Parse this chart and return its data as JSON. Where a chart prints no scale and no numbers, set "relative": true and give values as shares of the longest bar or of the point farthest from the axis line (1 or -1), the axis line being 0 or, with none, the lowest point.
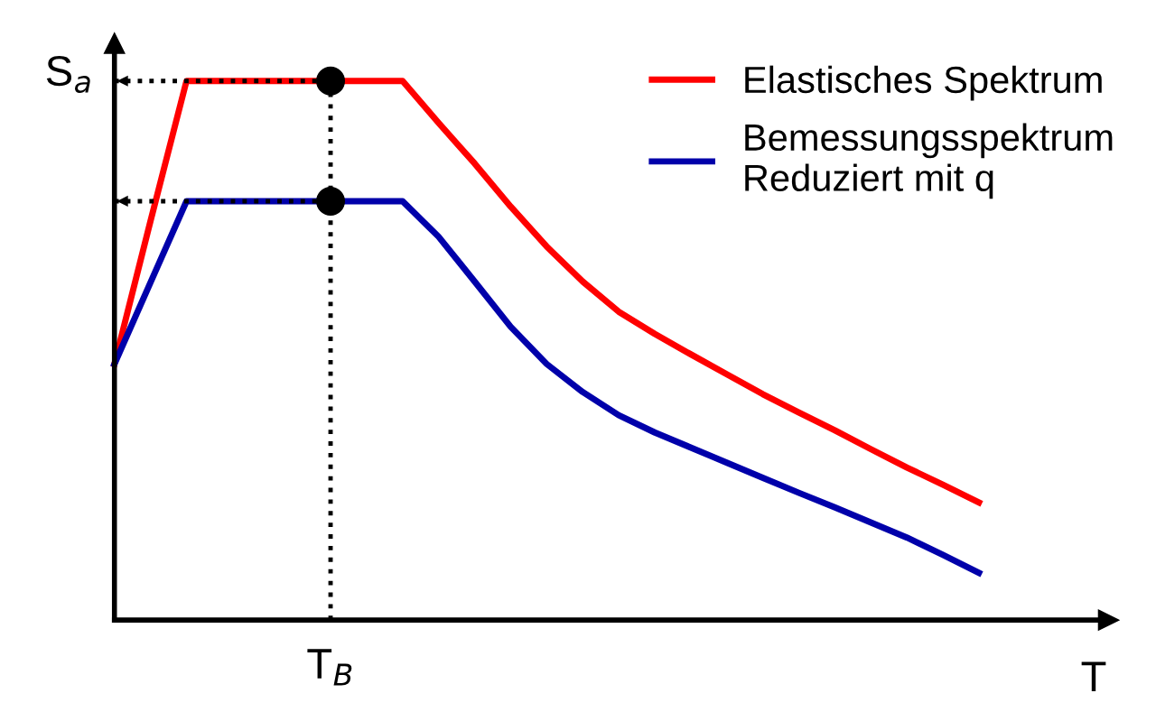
{
  "chart_data": {
    "type": "line",
    "relative": true,
    "xlabel": "T",
    "ylabel": "S$_{a}$",
    "grid": false,
    "legend": "top right",
    "line_style": "solid",
    "marker": "none",
    "categories": [
      null,
      null,
      null,
      null,
      null,
      null,
      null,
      null,
      null,
      null,
      null,
      null,
      null,
      null,
      null,
      null,
      null,
      null,
      null,
      null,
      null,
      null,
      null,
      null,
      null
    ],
    "annotations": [
      "T$_{B}$"
    ],
    "series": [
      {
        "name": "Elastisches Spektrum",
        "color": "#ff0000",
        "values": [
          0.475,
          0.74,
          1,
          1,
          1,
          1,
          1,
          1,
          1,
          0.922,
          0.847,
          0.767,
          0.693,
          0.628,
          0.572,
          0.531,
          0.493,
          0.456,
          0.419,
          0.385,
          0.352,
          0.317,
          0.283,
          0.251,
          0.218
        ]
      },
      {
        "name": "Bemessungsspektrum\nReduziert mit q",
        "color": "#0000aa",
        "values": [
          0.475,
          0.626,
          0.777,
          0.777,
          0.777,
          0.777,
          0.777,
          0.777,
          0.777,
          0.711,
          0.628,
          0.544,
          0.475,
          0.423,
          0.38,
          0.348,
          0.32,
          0.292,
          0.264,
          0.236,
          0.209,
          0.181,
          0.153,
          0.121,
          0.0875
        ]
      }
    ]
  }
}
